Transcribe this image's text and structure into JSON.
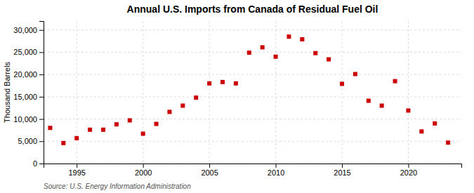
{
  "chart_data": {
    "type": "scatter",
    "title": "Annual U.S. Imports from Canada of Residual Fuel Oil",
    "ylabel": "Thousand Barrels",
    "source": "Source: U.S. Energy Information Administration",
    "x": [
      1993,
      1994,
      1995,
      1996,
      1997,
      1998,
      1999,
      2000,
      2001,
      2002,
      2003,
      2004,
      2005,
      2006,
      2007,
      2008,
      2009,
      2010,
      2011,
      2012,
      2013,
      2014,
      2015,
      2016,
      2017,
      2018,
      2019,
      2020,
      2021,
      2022,
      2023
    ],
    "values": [
      8000,
      4600,
      5700,
      7600,
      7600,
      8800,
      9700,
      6700,
      8900,
      11600,
      13000,
      14800,
      18000,
      18300,
      18000,
      24900,
      26100,
      24000,
      28500,
      27900,
      24800,
      23400,
      17900,
      20100,
      14100,
      13000,
      18500,
      11900,
      7200,
      9000,
      4700
    ],
    "color": "#cc0000",
    "marker": "square",
    "xlim": [
      1992.5,
      2024
    ],
    "xticks": [
      1995,
      2000,
      2005,
      2010,
      2015,
      2020
    ],
    "ylim": [
      0,
      32000
    ],
    "yticks": [
      0,
      {
        "value": 5000,
        "label": "5,000"
      },
      {
        "value": 10000,
        "label": "10,000"
      },
      {
        "value": 15000,
        "label": "15,000"
      },
      {
        "value": 20000,
        "label": "20,000"
      },
      {
        "value": 25000,
        "label": "25,000"
      },
      {
        "value": 30000,
        "label": "30,000"
      }
    ],
    "grid": true
  }
}
